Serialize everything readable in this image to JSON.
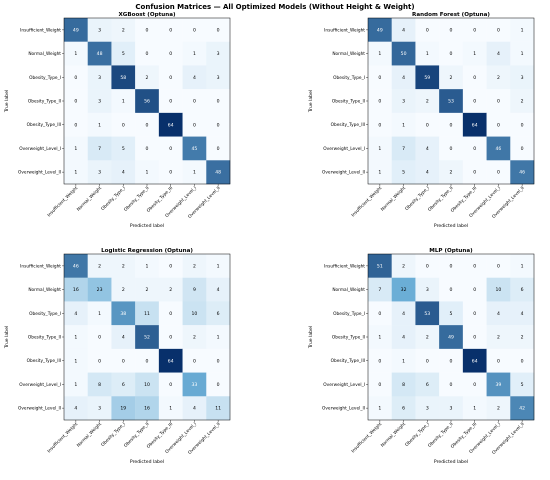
{
  "suptitle": "Confusion Matrices — All Optimized Models (Without Height & Weight)",
  "colormap": {
    "low": "#f7fbff",
    "high": "#08306b"
  },
  "chart_data": [
    {
      "type": "heatmap",
      "title": "XGBoost (Optuna)",
      "xlabel": "Predicted label",
      "ylabel": "True label",
      "classes": [
        "Insufficient_Weight",
        "Normal_Weight",
        "Obesity_Type_I",
        "Obesity_Type_II",
        "Obesity_Type_III",
        "Overweight_Level_I",
        "Overweight_Level_II"
      ],
      "matrix": [
        [
          49,
          3,
          2,
          0,
          0,
          0,
          0
        ],
        [
          1,
          48,
          5,
          0,
          0,
          1,
          3
        ],
        [
          0,
          3,
          58,
          2,
          0,
          4,
          3
        ],
        [
          0,
          3,
          1,
          56,
          0,
          0,
          0
        ],
        [
          0,
          1,
          0,
          0,
          64,
          0,
          0
        ],
        [
          1,
          7,
          5,
          0,
          0,
          45,
          0
        ],
        [
          1,
          3,
          4,
          1,
          0,
          1,
          48
        ]
      ]
    },
    {
      "type": "heatmap",
      "title": "Random Forest (Optuna)",
      "xlabel": "Predicted label",
      "ylabel": "True label",
      "classes": [
        "Insufficient_Weight",
        "Normal_Weight",
        "Obesity_Type_I",
        "Obesity_Type_II",
        "Obesity_Type_III",
        "Overweight_Level_I",
        "Overweight_Level_II"
      ],
      "matrix": [
        [
          49,
          4,
          0,
          0,
          0,
          0,
          1
        ],
        [
          1,
          50,
          1,
          0,
          1,
          4,
          1
        ],
        [
          0,
          4,
          59,
          2,
          0,
          2,
          3
        ],
        [
          0,
          3,
          2,
          53,
          0,
          0,
          2
        ],
        [
          0,
          1,
          0,
          0,
          64,
          0,
          0
        ],
        [
          1,
          7,
          4,
          0,
          0,
          46,
          0
        ],
        [
          1,
          5,
          4,
          2,
          0,
          0,
          46
        ]
      ]
    },
    {
      "type": "heatmap",
      "title": "Logistic Regression (Optuna)",
      "xlabel": "Predicted label",
      "ylabel": "True label",
      "classes": [
        "Insufficient_Weight",
        "Normal_Weight",
        "Obesity_Type_I",
        "Obesity_Type_II",
        "Obesity_Type_III",
        "Overweight_Level_I",
        "Overweight_Level_II"
      ],
      "matrix": [
        [
          46,
          2,
          2,
          1,
          0,
          2,
          1
        ],
        [
          16,
          23,
          2,
          2,
          2,
          9,
          4
        ],
        [
          4,
          1,
          38,
          11,
          0,
          10,
          6
        ],
        [
          1,
          0,
          4,
          52,
          0,
          2,
          1
        ],
        [
          1,
          0,
          0,
          0,
          64,
          0,
          0
        ],
        [
          1,
          8,
          6,
          10,
          0,
          33,
          0
        ],
        [
          4,
          3,
          19,
          16,
          1,
          4,
          11
        ]
      ]
    },
    {
      "type": "heatmap",
      "title": "MLP (Optuna)",
      "xlabel": "Predicted label",
      "ylabel": "True label",
      "classes": [
        "Insufficient_Weight",
        "Normal_Weight",
        "Obesity_Type_I",
        "Obesity_Type_II",
        "Obesity_Type_III",
        "Overweight_Level_I",
        "Overweight_Level_II"
      ],
      "matrix": [
        [
          51,
          2,
          0,
          0,
          0,
          0,
          1
        ],
        [
          7,
          32,
          3,
          0,
          0,
          10,
          6
        ],
        [
          0,
          4,
          53,
          5,
          0,
          4,
          4
        ],
        [
          1,
          4,
          2,
          49,
          0,
          2,
          2
        ],
        [
          0,
          1,
          0,
          0,
          64,
          0,
          0
        ],
        [
          0,
          8,
          6,
          0,
          0,
          39,
          5
        ],
        [
          1,
          6,
          3,
          3,
          1,
          2,
          42
        ]
      ]
    }
  ]
}
